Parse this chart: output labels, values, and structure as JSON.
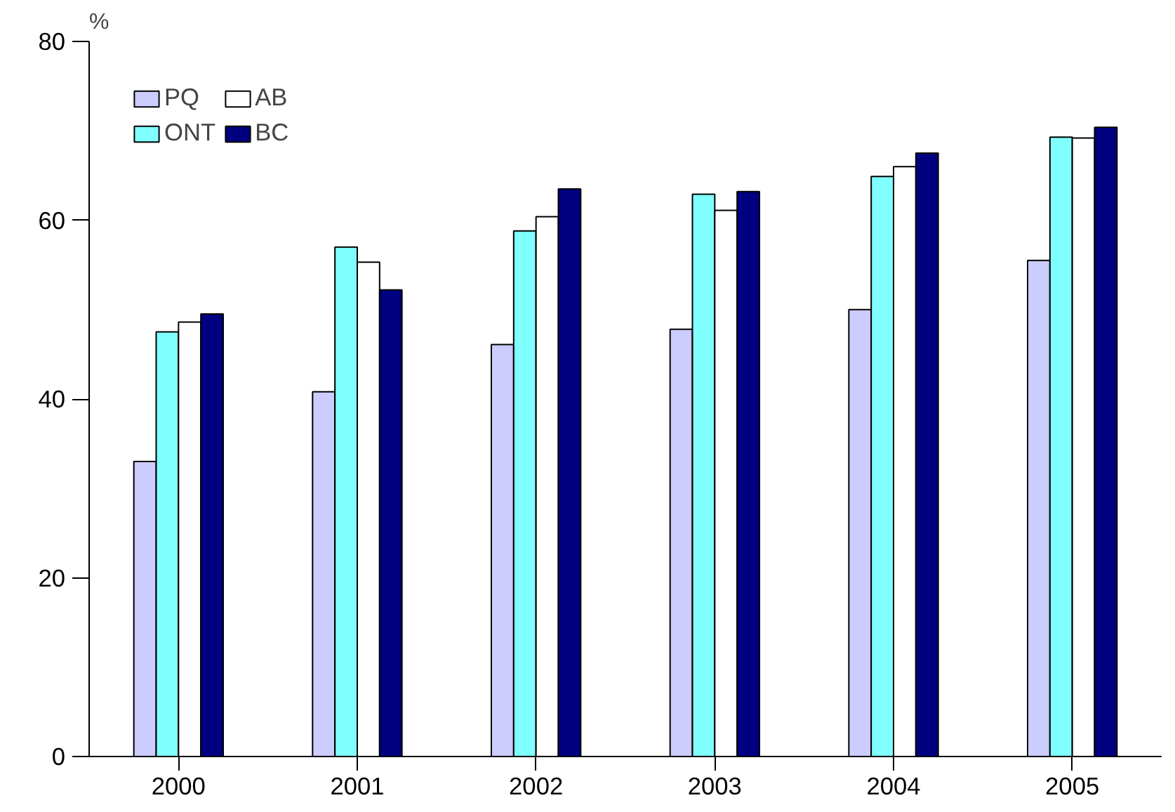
{
  "chart_data": {
    "type": "bar",
    "ylabel": "%",
    "categories": [
      "2000",
      "2001",
      "2002",
      "2003",
      "2004",
      "2005"
    ],
    "series": [
      {
        "name": "PQ",
        "color": "#ccccff",
        "values": [
          33.0,
          40.8,
          46.1,
          47.8,
          50.0,
          55.5
        ]
      },
      {
        "name": "ONT",
        "color": "#80ffff",
        "values": [
          47.5,
          57.0,
          58.8,
          62.9,
          64.9,
          69.3
        ]
      },
      {
        "name": "AB",
        "color": "#ffffff",
        "values": [
          48.6,
          55.3,
          60.4,
          61.1,
          66.0,
          69.2
        ]
      },
      {
        "name": "BC",
        "color": "#000080",
        "values": [
          49.5,
          52.2,
          63.5,
          63.2,
          67.5,
          70.4
        ]
      }
    ],
    "ylim": [
      0,
      80
    ],
    "yticks": [
      0,
      20,
      40,
      60,
      80
    ],
    "grid": false,
    "legend": "top left"
  }
}
